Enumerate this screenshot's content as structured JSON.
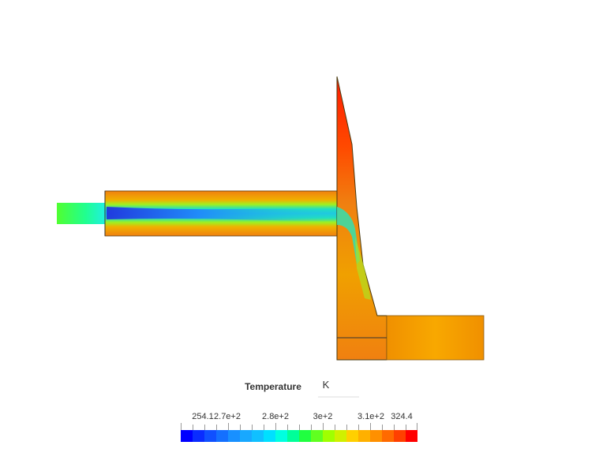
{
  "legend": {
    "title": "Temperature",
    "unit": "K",
    "ticks": [
      "254.1",
      "2.7e+2",
      "2.8e+2",
      "3e+2",
      "3.1e+2",
      "324.4"
    ]
  }
}
